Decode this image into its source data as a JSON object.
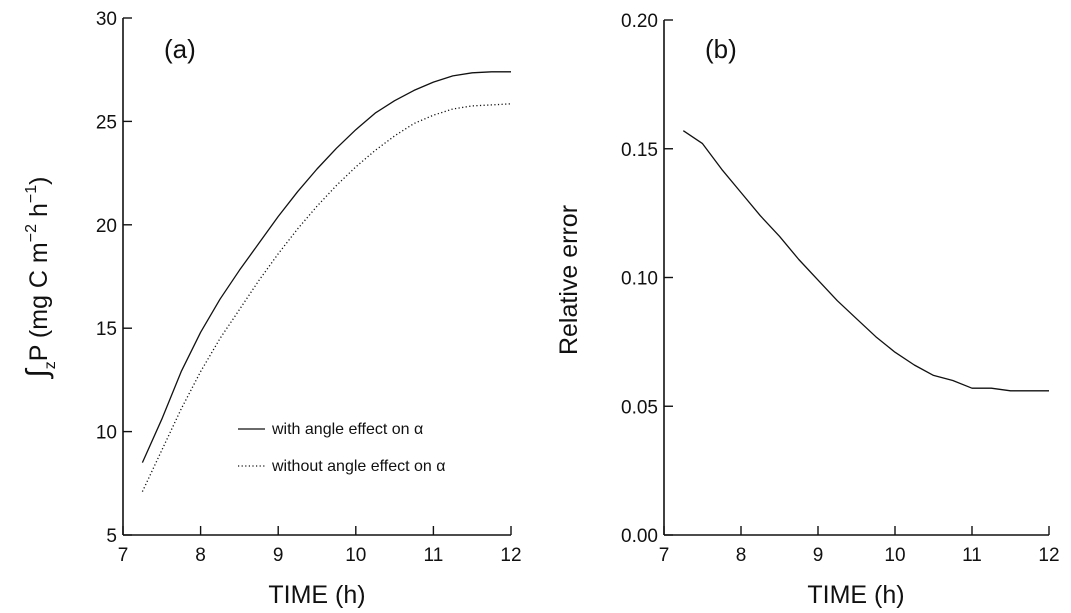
{
  "chart_data": [
    {
      "type": "line",
      "panel_label": "(a)",
      "xlabel": "TIME (h)",
      "ylabel_parts": {
        "integral": "∫",
        "sub": "z",
        "main": "P (mg C m",
        "exp1": "−2",
        "mid": " h",
        "exp2": "−1",
        "end": ")"
      },
      "xlim": [
        7,
        12
      ],
      "ylim": [
        5,
        30
      ],
      "xticks": [
        7,
        8,
        9,
        10,
        11,
        12
      ],
      "yticks": [
        5,
        10,
        15,
        20,
        25,
        30
      ],
      "x_tick_labels": [
        "7",
        "8",
        "9",
        "10",
        "11",
        "12"
      ],
      "y_tick_labels": [
        "5",
        "10",
        "15",
        "20",
        "25",
        "30"
      ],
      "grid": false,
      "legend": {
        "placement": "lower-right"
      },
      "series": [
        {
          "name": "with angle effect on α",
          "style": "solid",
          "x": [
            7.25,
            7.5,
            7.75,
            8.0,
            8.25,
            8.5,
            8.75,
            9.0,
            9.25,
            9.5,
            9.75,
            10.0,
            10.25,
            10.5,
            10.75,
            11.0,
            11.25,
            11.5,
            11.75,
            12.0
          ],
          "y": [
            8.5,
            10.6,
            12.9,
            14.8,
            16.4,
            17.8,
            19.1,
            20.4,
            21.6,
            22.7,
            23.7,
            24.6,
            25.4,
            26.0,
            26.5,
            26.9,
            27.2,
            27.35,
            27.4,
            27.4
          ]
        },
        {
          "name": "without angle effect on α",
          "style": "dotted",
          "x": [
            7.25,
            7.5,
            7.75,
            8.0,
            8.25,
            8.5,
            8.75,
            9.0,
            9.25,
            9.5,
            9.75,
            10.0,
            10.25,
            10.5,
            10.75,
            11.0,
            11.25,
            11.5,
            11.75,
            12.0
          ],
          "y": [
            7.1,
            9.1,
            11.1,
            12.9,
            14.5,
            15.9,
            17.3,
            18.6,
            19.8,
            20.9,
            21.9,
            22.8,
            23.6,
            24.3,
            24.9,
            25.3,
            25.6,
            25.75,
            25.8,
            25.85
          ]
        }
      ]
    },
    {
      "type": "line",
      "panel_label": "(b)",
      "xlabel": "TIME (h)",
      "ylabel": "Relative error",
      "xlim": [
        7,
        12
      ],
      "ylim": [
        0,
        0.2
      ],
      "xticks": [
        7,
        8,
        9,
        10,
        11,
        12
      ],
      "yticks": [
        0,
        0.05,
        0.1,
        0.15,
        0.2
      ],
      "x_tick_labels": [
        "7",
        "8",
        "9",
        "10",
        "11",
        "12"
      ],
      "y_tick_labels": [
        "0.00",
        "0.05",
        "0.10",
        "0.15",
        "0.20"
      ],
      "grid": false,
      "series": [
        {
          "style": "solid",
          "x": [
            7.25,
            7.5,
            7.75,
            8.0,
            8.25,
            8.5,
            8.75,
            9.0,
            9.25,
            9.5,
            9.75,
            10.0,
            10.25,
            10.5,
            10.75,
            11.0,
            11.25,
            11.5,
            11.75,
            12.0
          ],
          "y": [
            0.157,
            0.152,
            0.142,
            0.133,
            0.124,
            0.116,
            0.107,
            0.099,
            0.091,
            0.084,
            0.077,
            0.071,
            0.066,
            0.062,
            0.06,
            0.057,
            0.057,
            0.056,
            0.056,
            0.056
          ]
        }
      ]
    }
  ]
}
